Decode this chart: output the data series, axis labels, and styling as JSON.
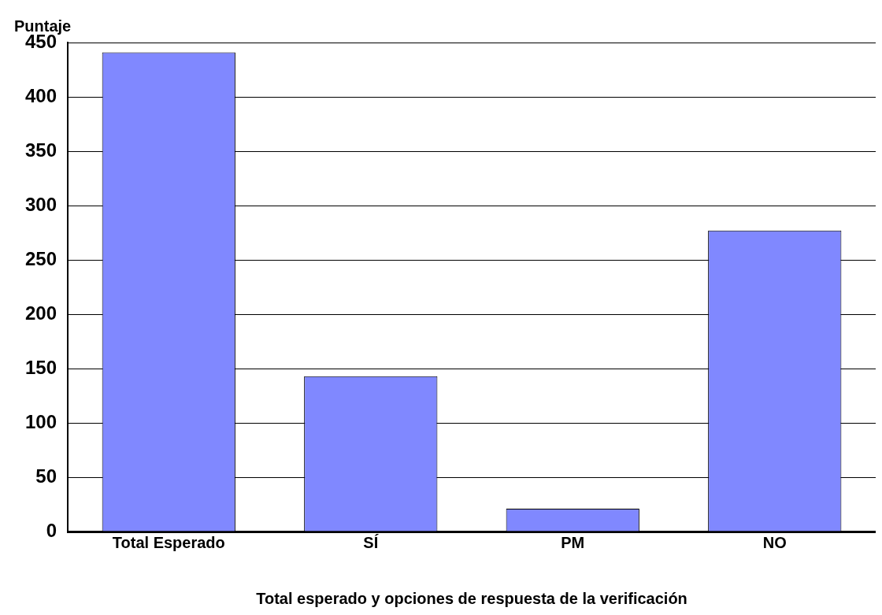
{
  "chart_data": {
    "type": "bar",
    "ylabel": "Puntaje",
    "xlabel": "Total esperado y opciones de respuesta de la verificación",
    "categories": [
      "Total Esperado",
      "SÍ",
      "PM",
      "NO"
    ],
    "values": [
      441,
      143,
      21,
      277
    ],
    "color": "#8088ff",
    "ylim": [
      0,
      450
    ],
    "yticks": [
      0,
      50,
      100,
      150,
      200,
      250,
      300,
      350,
      400,
      450
    ],
    "grid": "y",
    "legend": false
  }
}
